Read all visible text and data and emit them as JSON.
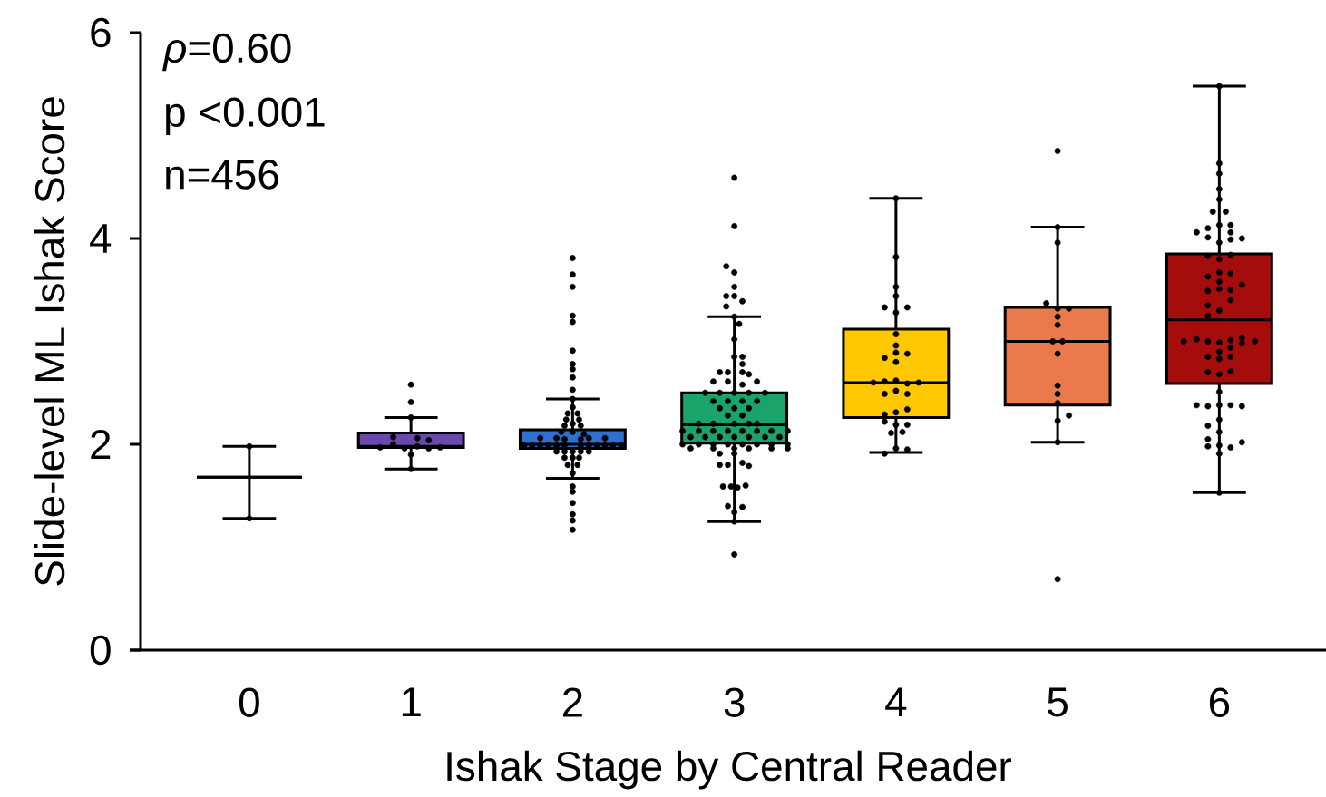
{
  "chart_data": {
    "type": "box",
    "xlabel": "Ishak Stage by Central Reader",
    "ylabel": "Slide-level ML Ishak Score",
    "annotations": [
      "*ρ*=0.60",
      "p <0.001",
      "n=456"
    ],
    "x": [
      0,
      1,
      2,
      3,
      4,
      5,
      6
    ],
    "xlim": [
      -0.74,
      6.66
    ],
    "xticks": [
      0,
      1,
      2,
      3,
      4,
      5,
      6
    ],
    "ylim": [
      0,
      6
    ],
    "yticks": [
      0,
      2,
      4,
      6
    ],
    "colors": [
      null,
      "#6a48ac",
      "#2f6fcf",
      "#1aa36a",
      "#ffc800",
      "#ea794b",
      "#a50c0c"
    ],
    "boxes": [
      {
        "low": 1.28,
        "q1": 1.68,
        "median": 1.68,
        "q3": 1.68,
        "high": 1.98
      },
      {
        "low": 1.76,
        "q1": 1.97,
        "median": 1.98,
        "q3": 2.11,
        "high": 2.26
      },
      {
        "low": 1.67,
        "q1": 1.96,
        "median": 2.0,
        "q3": 2.14,
        "high": 2.44
      },
      {
        "low": 1.25,
        "q1": 2.01,
        "median": 2.19,
        "q3": 2.5,
        "high": 3.24
      },
      {
        "low": 1.92,
        "q1": 2.26,
        "median": 2.6,
        "q3": 3.12,
        "high": 4.39
      },
      {
        "low": 2.02,
        "q1": 2.38,
        "median": 3.0,
        "q3": 3.33,
        "high": 4.11
      },
      {
        "low": 1.53,
        "q1": 2.59,
        "median": 3.21,
        "q3": 3.85,
        "high": 5.48
      }
    ],
    "series": [
      {
        "type": "scatter",
        "color": "#000000",
        "x": [
          0,
          0,
          1,
          1,
          1,
          0.89,
          1.04,
          1.11,
          0.81,
          0.89,
          0.96,
          1.04,
          1.11,
          1.18,
          1,
          1,
          2,
          2,
          2,
          2,
          2,
          2,
          2,
          2,
          2,
          2,
          2,
          2,
          1.97,
          2.03,
          1.96,
          2.04,
          2,
          1.95,
          2.05,
          1.93,
          2,
          2.07,
          1.8,
          1.9,
          1.95,
          2.05,
          2.1,
          2.2,
          1.7,
          1.75,
          1.8,
          1.85,
          1.9,
          1.95,
          2.05,
          2.1,
          2.15,
          2.2,
          2.25,
          2.3,
          1.9,
          1.95,
          2,
          2.05,
          2.1,
          1.95,
          2,
          2.04,
          1.97,
          2.03,
          2,
          2,
          2,
          2,
          2,
          2,
          2,
          3,
          3,
          2.95,
          3,
          3,
          2.95,
          3,
          3.05,
          2.95,
          3,
          3.03,
          3,
          3.05,
          3,
          3.05,
          3.09,
          2.91,
          2.96,
          3.05,
          2.87,
          2.96,
          3.14,
          3.05,
          2.82,
          2.91,
          3,
          3.09,
          3.19,
          2.87,
          2.96,
          3.05,
          3.14,
          2.91,
          3,
          3.09,
          2.96,
          3.05,
          2.78,
          2.87,
          3,
          3.09,
          3.14,
          2.68,
          2.78,
          2.87,
          2.96,
          3.05,
          3.14,
          3.23,
          3.33,
          2.73,
          2.82,
          2.91,
          3,
          3.09,
          3.19,
          3.28,
          2.68,
          2.78,
          2.87,
          2.96,
          3.05,
          3.14,
          3.23,
          3.33,
          2.73,
          2.87,
          3,
          3.09,
          3.23,
          3.33,
          2.91,
          3,
          2.91,
          2.96,
          3.05,
          3.09,
          2.93,
          2.98,
          3.02,
          3.07,
          2.96,
          3.05,
          3,
          3,
          3,
          4,
          4,
          4,
          4,
          3.93,
          4.07,
          4,
          4,
          4,
          4,
          4.07,
          3.93,
          4,
          3.86,
          3.93,
          4,
          4.07,
          4.14,
          4,
          3.93,
          4.07,
          4.07,
          4,
          3.93,
          3.93,
          4,
          4.07,
          3.97,
          4.04,
          4,
          4.07,
          3.93,
          5,
          5,
          5,
          4.93,
          5,
          5.07,
          5,
          5,
          4.97,
          5.03,
          5,
          5,
          5,
          5,
          5.07,
          5,
          5,
          5,
          6,
          6,
          6,
          6,
          6,
          5.96,
          6.04,
          6,
          6.07,
          5.86,
          5.93,
          6.07,
          5.93,
          6.07,
          6.14,
          6,
          5.93,
          6,
          6.07,
          6,
          6.07,
          5.93,
          6,
          6.14,
          5.93,
          6,
          6.07,
          6.07,
          5.93,
          6,
          5.93,
          5.78,
          5.86,
          5.93,
          6,
          6.07,
          6.14,
          6.14,
          6.22,
          6.07,
          6,
          5.93,
          6,
          6.07,
          5.93,
          6,
          6.07,
          6,
          5.86,
          5.93,
          6,
          6.07,
          6.14,
          6,
          5.93,
          6,
          5.93,
          6.14,
          5.93,
          6,
          6.07,
          6,
          6
        ],
        "values": [
          1.98,
          1.28,
          2.58,
          2.41,
          2.26,
          2.07,
          2.06,
          2.04,
          1.97,
          2.0,
          1.96,
          1.98,
          1.96,
          1.97,
          1.9,
          1.76,
          3.81,
          3.65,
          3.53,
          3.25,
          3.19,
          2.91,
          2.78,
          2.73,
          2.65,
          2.53,
          2.44,
          2.36,
          2.3,
          2.3,
          2.24,
          2.24,
          2.2,
          2.18,
          2.18,
          2.12,
          2.12,
          2.1,
          2.06,
          2.06,
          2.05,
          2.05,
          2.06,
          2.06,
          1.99,
          1.99,
          1.99,
          1.99,
          1.99,
          1.99,
          1.99,
          1.99,
          1.99,
          1.99,
          1.99,
          1.99,
          1.93,
          1.93,
          1.93,
          1.93,
          1.93,
          1.87,
          1.87,
          1.87,
          1.8,
          1.8,
          1.72,
          1.59,
          1.54,
          1.43,
          1.32,
          1.26,
          1.17,
          4.59,
          4.12,
          3.73,
          3.67,
          3.53,
          3.44,
          3.44,
          3.39,
          3.34,
          3.24,
          3.17,
          3.02,
          2.85,
          2.85,
          2.78,
          2.68,
          2.7,
          2.7,
          2.7,
          2.61,
          2.61,
          2.61,
          2.58,
          2.5,
          2.5,
          2.5,
          2.5,
          2.5,
          2.42,
          2.42,
          2.42,
          2.42,
          2.35,
          2.35,
          2.35,
          2.28,
          2.28,
          2.2,
          2.2,
          2.2,
          2.2,
          2.2,
          2.13,
          2.13,
          2.13,
          2.13,
          2.13,
          2.13,
          2.13,
          2.13,
          2.07,
          2.07,
          2.07,
          2.07,
          2.07,
          2.07,
          2.07,
          2.0,
          2.0,
          2.0,
          2.0,
          2.0,
          2.0,
          2.0,
          2.0,
          1.96,
          1.96,
          1.96,
          1.96,
          1.96,
          1.96,
          1.91,
          1.91,
          1.8,
          1.8,
          1.82,
          1.79,
          1.59,
          1.59,
          1.58,
          1.6,
          1.4,
          1.39,
          1.34,
          1.25,
          0.93,
          4.39,
          3.82,
          3.53,
          3.44,
          3.33,
          3.33,
          3.28,
          3.07,
          2.96,
          2.89,
          2.88,
          2.84,
          2.8,
          2.6,
          2.61,
          2.62,
          2.59,
          2.6,
          2.52,
          2.49,
          2.49,
          2.34,
          2.31,
          2.29,
          2.22,
          2.19,
          2.19,
          2.11,
          2.12,
          1.96,
          1.95,
          1.91,
          4.85,
          4.11,
          3.96,
          3.37,
          3.32,
          3.32,
          3.24,
          3.16,
          3.0,
          3.0,
          2.88,
          2.57,
          2.49,
          2.4,
          2.28,
          2.23,
          2.02,
          0.69,
          5.48,
          4.73,
          4.63,
          4.48,
          4.38,
          4.26,
          4.26,
          4.13,
          4.13,
          4.06,
          4.1,
          4.06,
          4.01,
          3.99,
          4.0,
          3.96,
          3.83,
          3.8,
          3.84,
          3.67,
          3.66,
          3.63,
          3.58,
          3.55,
          3.49,
          3.51,
          3.5,
          3.4,
          3.35,
          3.3,
          3.25,
          3.0,
          3.02,
          3.0,
          2.99,
          3.01,
          3.03,
          2.98,
          3.0,
          2.94,
          2.9,
          2.85,
          2.83,
          2.85,
          2.7,
          2.68,
          2.71,
          2.51,
          2.38,
          2.37,
          2.38,
          2.38,
          2.37,
          2.24,
          2.18,
          2.12,
          2.05,
          2.02,
          1.98,
          1.99,
          1.97,
          1.91,
          1.53
        ]
      }
    ]
  }
}
